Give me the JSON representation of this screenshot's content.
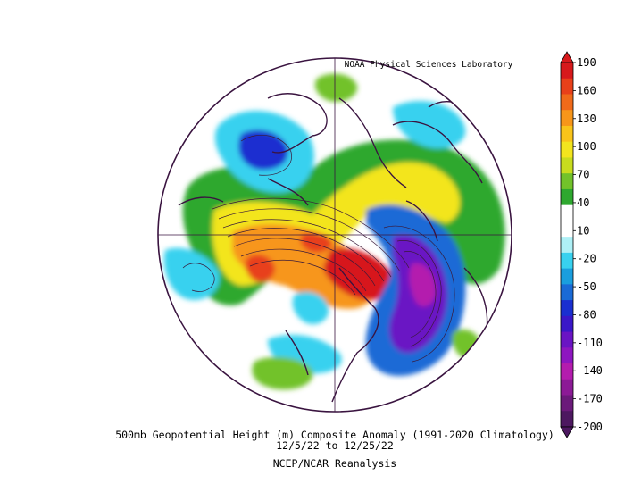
{
  "header": {
    "credit": "NOAA Physical Sciences Laboratory"
  },
  "footer": {
    "title": "500mb Geopotential Height (m) Composite Anomaly (1991-2020 Climatology)",
    "date_range": "12/5/22  to 12/25/22",
    "source": "NCEP/NCAR Reanalysis"
  },
  "colorbar": {
    "ticks": [
      "190",
      "160",
      "130",
      "100",
      "70",
      "40",
      "10",
      "-20",
      "-50",
      "-80",
      "-110",
      "-140",
      "-170",
      "-200"
    ],
    "colors": [
      "#d7191c",
      "#e8401a",
      "#f06a1a",
      "#f7961a",
      "#f9c41a",
      "#f3e51e",
      "#c8dc1e",
      "#72c22a",
      "#2ea82f",
      "#ffffff",
      "#ffffff",
      "#aef0f6",
      "#38d1ef",
      "#1a9ede",
      "#1a6ad6",
      "#1a2fd0",
      "#3a17c8",
      "#6a14c4",
      "#8e16c0",
      "#b41cae",
      "#8c1a96",
      "#6b1a7a",
      "#4d1860"
    ]
  },
  "map": {
    "projection": "north-polar-stereographic",
    "colors": {
      "coast": "#3a1440",
      "contour": "#3a1a3a"
    }
  }
}
